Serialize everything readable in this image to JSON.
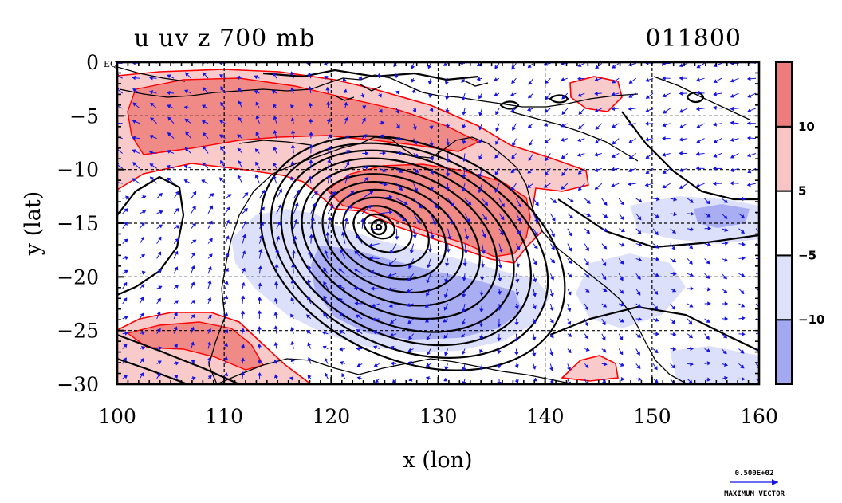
{
  "chart_data": {
    "type": "contour_vector_map",
    "title": "u uv z 700 mb",
    "time_label": "011800",
    "xlabel": "x (lon)",
    "ylabel": "y (lat)",
    "xlim": [
      100,
      160
    ],
    "ylim": [
      -30,
      0
    ],
    "x_ticks": [
      100,
      110,
      120,
      130,
      140,
      150,
      160
    ],
    "x_tick_labels": [
      "100",
      "110",
      "120",
      "130",
      "140",
      "150",
      "160"
    ],
    "y_ticks": [
      0,
      -5,
      -10,
      -15,
      -20,
      -25,
      -30
    ],
    "y_tick_labels": [
      "0",
      "−5",
      "−10",
      "−15",
      "−20",
      "−25",
      "−30"
    ],
    "y_top_suffix": "EQ",
    "grid": true,
    "colorbar": {
      "placement": "right",
      "levels": [
        -10,
        -5,
        5,
        10
      ],
      "level_labels": [
        "−10",
        "−5",
        "5",
        "10"
      ],
      "colors": [
        "#a3a8f0",
        "#dfe1fb",
        "#ffffff",
        "#f8c4c4",
        "#ef7c7c"
      ]
    },
    "shading_colors": {
      "strong_positive": "#ef8a87",
      "weak_positive": "#f8caca",
      "weak_negative": "#dde0fb",
      "strong_negative": "#a9aef2",
      "positive_edge": "#ff0000"
    },
    "cyclone_center": {
      "lon": 124.5,
      "lat": -15.3
    },
    "vector_color": "#1515e6",
    "reference_vector": {
      "value": "0.500E+02",
      "label": "MAXIMUM VECTOR"
    }
  }
}
